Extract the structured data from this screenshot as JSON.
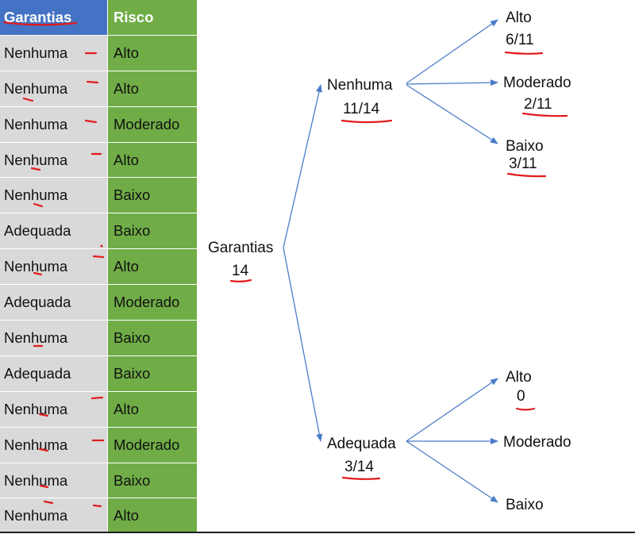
{
  "table": {
    "headers": [
      "Garantias",
      "Risco"
    ],
    "rows": [
      [
        "Nenhuma",
        "Alto"
      ],
      [
        "Nenhuma",
        "Alto"
      ],
      [
        "Nenhuma",
        "Moderado"
      ],
      [
        "Nenhuma",
        "Alto"
      ],
      [
        "Nenhuma",
        "Baixo"
      ],
      [
        "Adequada",
        "Baixo"
      ],
      [
        "Nenhuma",
        "Alto"
      ],
      [
        "Adequada",
        "Moderado"
      ],
      [
        "Nenhuma",
        "Baixo"
      ],
      [
        "Adequada",
        "Baixo"
      ],
      [
        "Nenhuma",
        "Alto"
      ],
      [
        "Nenhuma",
        "Moderado"
      ],
      [
        "Nenhuma",
        "Baixo"
      ],
      [
        "Nenhuma",
        "Alto"
      ]
    ]
  },
  "tree": {
    "root": {
      "label": "Garantias",
      "value": "14"
    },
    "branches": [
      {
        "label": "Nenhuma",
        "value": "11/14",
        "leaves": [
          {
            "label": "Alto",
            "value": "6/11"
          },
          {
            "label": "Moderado",
            "value": "2/11"
          },
          {
            "label": "Baixo",
            "value": "3/11"
          }
        ]
      },
      {
        "label": "Adequada",
        "value": "3/14",
        "leaves": [
          {
            "label": "Alto",
            "value": "0"
          },
          {
            "label": "Moderado",
            "value": ""
          },
          {
            "label": "Baixo",
            "value": ""
          }
        ]
      }
    ]
  },
  "colors": {
    "header_blue": "#4472c4",
    "risk_green": "#70ad47",
    "guarantee_gray": "#d9d9d9",
    "arrow_blue": "#4a7cc9",
    "ink_red": "#e21b1b"
  }
}
